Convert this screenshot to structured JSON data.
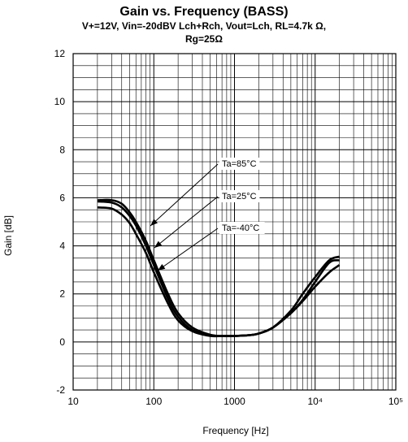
{
  "chart_data": {
    "type": "line",
    "title": "Gain vs. Frequency (BASS)",
    "subtitle_line1": "V+=12V, Vin=-20dBV Lch+Rch, Vout=Lch, RL=4.7k Ω,",
    "subtitle_line2": "Rg=25Ω",
    "xlabel": "Frequency [Hz]",
    "ylabel": "Gain [dB]",
    "xscale": "log",
    "xlim": [
      10,
      100000
    ],
    "ylim": [
      -2,
      12
    ],
    "grid": true,
    "x_tick_labels": [
      "10",
      "100",
      "1000",
      "10⁴",
      "10⁵"
    ],
    "y_tick_labels": [
      "-2",
      "0",
      "2",
      "4",
      "6",
      "8",
      "10",
      "12"
    ],
    "series": [
      {
        "name": "Ta=85°C",
        "x": [
          20,
          30,
          40,
          50,
          60,
          80,
          100,
          150,
          200,
          300,
          500,
          700,
          1000,
          1500,
          2000,
          3000,
          5000,
          7000,
          10000,
          15000,
          20000
        ],
        "y": [
          5.9,
          5.9,
          5.75,
          5.4,
          5.0,
          4.2,
          3.4,
          2.0,
          1.2,
          0.6,
          0.3,
          0.25,
          0.25,
          0.28,
          0.35,
          0.6,
          1.2,
          1.7,
          2.3,
          2.9,
          3.2
        ]
      },
      {
        "name": "Ta=25°C",
        "x": [
          20,
          30,
          40,
          50,
          60,
          80,
          100,
          150,
          200,
          300,
          500,
          700,
          1000,
          1500,
          2000,
          3000,
          5000,
          7000,
          10000,
          15000,
          20000
        ],
        "y": [
          5.85,
          5.8,
          5.6,
          5.25,
          4.85,
          4.0,
          3.2,
          1.8,
          1.05,
          0.5,
          0.28,
          0.25,
          0.25,
          0.28,
          0.35,
          0.6,
          1.2,
          1.75,
          2.5,
          3.3,
          3.4
        ]
      },
      {
        "name": "Ta=-40°C",
        "x": [
          20,
          30,
          40,
          50,
          60,
          80,
          100,
          150,
          200,
          300,
          500,
          700,
          1000,
          1500,
          2000,
          3000,
          5000,
          7000,
          10000,
          15000,
          20000
        ],
        "y": [
          5.6,
          5.55,
          5.3,
          4.95,
          4.5,
          3.7,
          2.9,
          1.6,
          0.9,
          0.45,
          0.25,
          0.25,
          0.25,
          0.28,
          0.35,
          0.6,
          1.3,
          2.0,
          2.7,
          3.4,
          3.55
        ]
      }
    ],
    "annotations": [
      "Ta=85°C",
      "Ta=25°C",
      "Ta=-40°C"
    ],
    "line_color": "#000000",
    "grid_color": "#000000"
  }
}
